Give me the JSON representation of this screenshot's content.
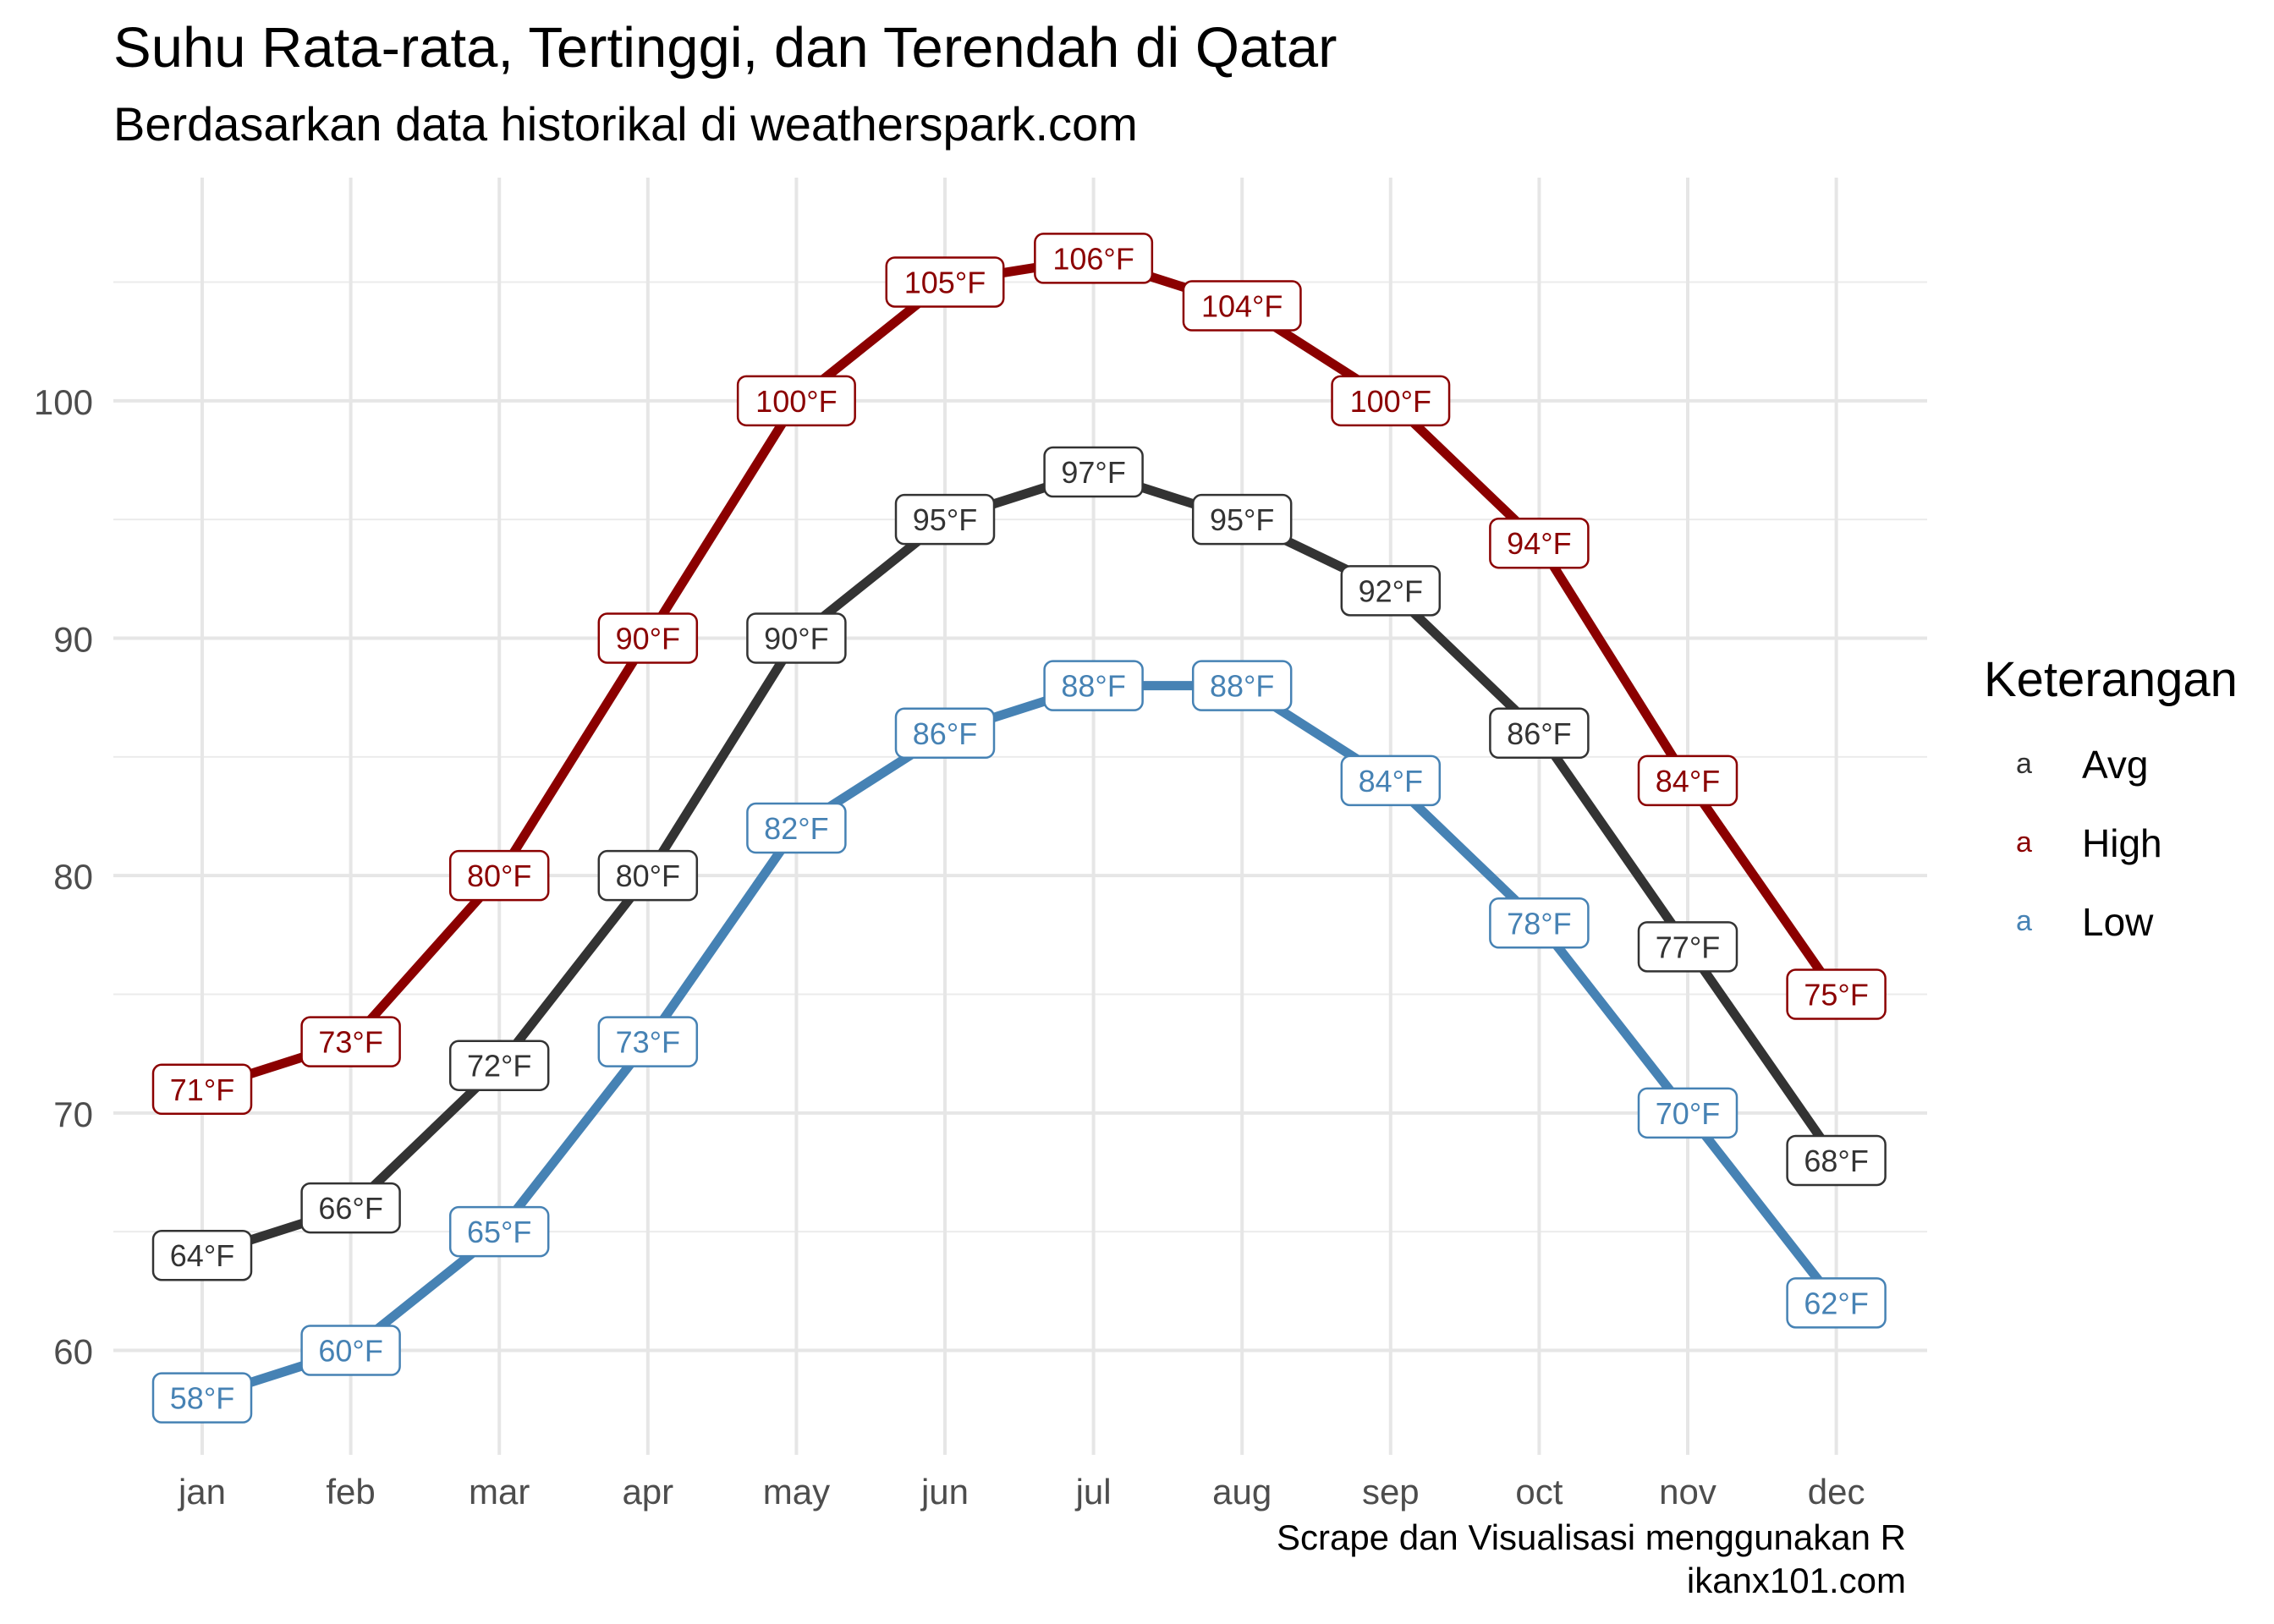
{
  "title": "Suhu Rata-rata, Tertinggi, dan Terendah di Qatar",
  "subtitle": "Berdasarkan data historikal di weatherspark.com",
  "caption": [
    "Scrape dan Visualisasi menggunakan R",
    "ikanx101.com"
  ],
  "legend": {
    "title": "Keterangan",
    "key_glyph": "a",
    "items": [
      {
        "label": "Avg",
        "color": "#333333"
      },
      {
        "label": "High",
        "color": "#8B0000"
      },
      {
        "label": "Low",
        "color": "#4682B4"
      }
    ]
  },
  "chart_data": {
    "type": "line",
    "categories": [
      "jan",
      "feb",
      "mar",
      "apr",
      "may",
      "jun",
      "jul",
      "aug",
      "sep",
      "oct",
      "nov",
      "dec"
    ],
    "series": [
      {
        "name": "High",
        "color": "#8B0000",
        "values": [
          71,
          73,
          80,
          90,
          100,
          105,
          106,
          104,
          100,
          94,
          84,
          75
        ]
      },
      {
        "name": "Avg",
        "color": "#333333",
        "values": [
          64,
          66,
          72,
          80,
          90,
          95,
          97,
          95,
          92,
          86,
          77,
          68
        ]
      },
      {
        "name": "Low",
        "color": "#4682B4",
        "values": [
          58,
          60,
          65,
          73,
          82,
          86,
          88,
          88,
          84,
          78,
          70,
          62
        ]
      }
    ],
    "label_suffix": "°F",
    "ylim": [
      55.6,
      109.4
    ],
    "yticks": [
      60,
      70,
      80,
      90,
      100
    ],
    "xlabel": "",
    "ylabel": "",
    "grid": true,
    "legend_position": "right"
  }
}
